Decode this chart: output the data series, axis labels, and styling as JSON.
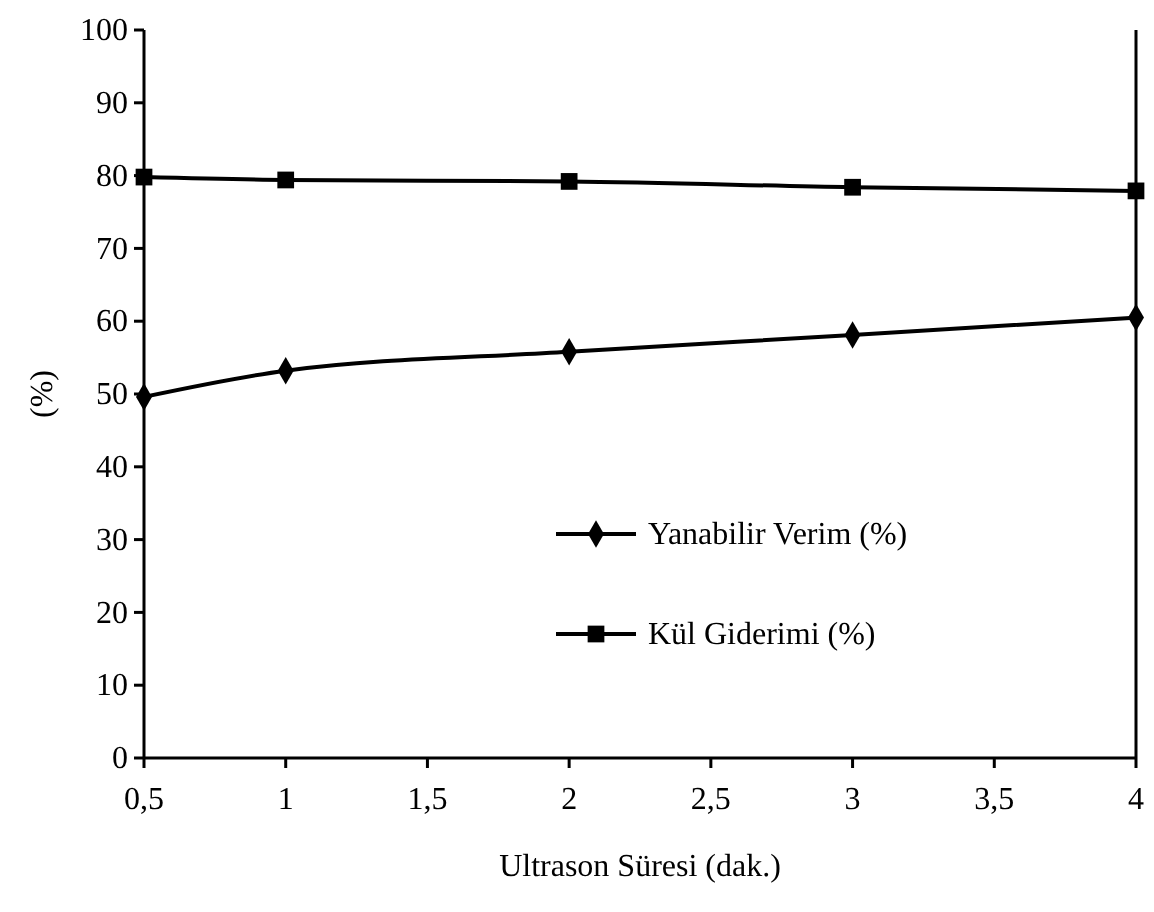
{
  "chart_data": {
    "type": "line",
    "xlabel": "Ultrason Süresi (dak.)",
    "ylabel": "(%)",
    "x": [
      0.5,
      1,
      2,
      3,
      4
    ],
    "series": [
      {
        "name": "Yanabilir Verim (%)",
        "color": "#000000",
        "marker": "diamond",
        "values": [
          49.6,
          53.2,
          55.8,
          58.1,
          60.5
        ]
      },
      {
        "name": "Kül Giderimi (%)",
        "color": "#000000",
        "marker": "square",
        "values": [
          79.8,
          79.4,
          79.2,
          78.4,
          77.9
        ]
      }
    ],
    "xlim": [
      0.5,
      4
    ],
    "xticks": [
      {
        "value": 0.5,
        "label": "0,5"
      },
      1,
      {
        "value": 1.5,
        "label": "1,5"
      },
      2,
      {
        "value": 2.5,
        "label": "2,5"
      },
      3,
      {
        "value": 3.5,
        "label": "3,5"
      },
      4
    ],
    "ylim": [
      0,
      100
    ],
    "yticks": [
      0,
      10,
      20,
      30,
      40,
      50,
      60,
      70,
      80,
      90,
      100
    ],
    "grid": false,
    "legend": "bottom right",
    "line_style": "solid"
  }
}
